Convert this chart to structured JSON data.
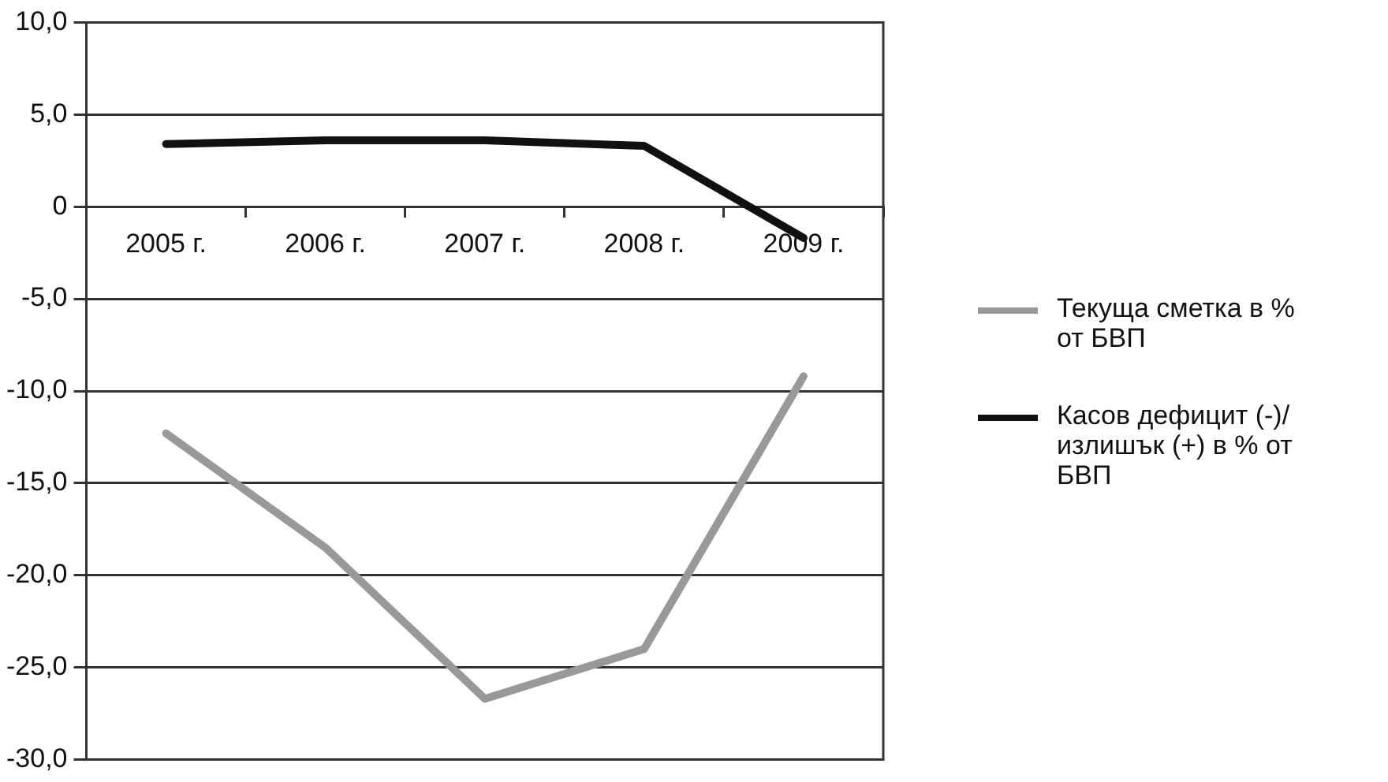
{
  "chart_data": {
    "type": "line",
    "categories": [
      "2005 г.",
      "2006 г.",
      "2007 г.",
      "2008 г.",
      "2009 г."
    ],
    "series": [
      {
        "name": "Текуща сметка в % от БВП",
        "color": "#999999",
        "values": [
          -12.3,
          -18.5,
          -26.7,
          -24.0,
          -9.2
        ]
      },
      {
        "name": "Касов дефицит (-)/ излишък (+) в % от БВП",
        "color": "#111111",
        "values": [
          3.4,
          3.6,
          3.6,
          3.3,
          -1.7
        ]
      }
    ],
    "ylim": [
      -30,
      10
    ],
    "yticks": [
      {
        "value": -30,
        "label": "-30,0"
      },
      {
        "value": -25,
        "label": "-25,0"
      },
      {
        "value": -20,
        "label": "-20,0"
      },
      {
        "value": -15,
        "label": "-15,0"
      },
      {
        "value": -10,
        "label": "-10,0"
      },
      {
        "value": -5,
        "label": "-5,0"
      },
      0,
      {
        "value": 5,
        "label": "5,0"
      },
      {
        "value": 10,
        "label": "10,0"
      }
    ],
    "grid": "y",
    "legend": "right",
    "marker": "none"
  }
}
